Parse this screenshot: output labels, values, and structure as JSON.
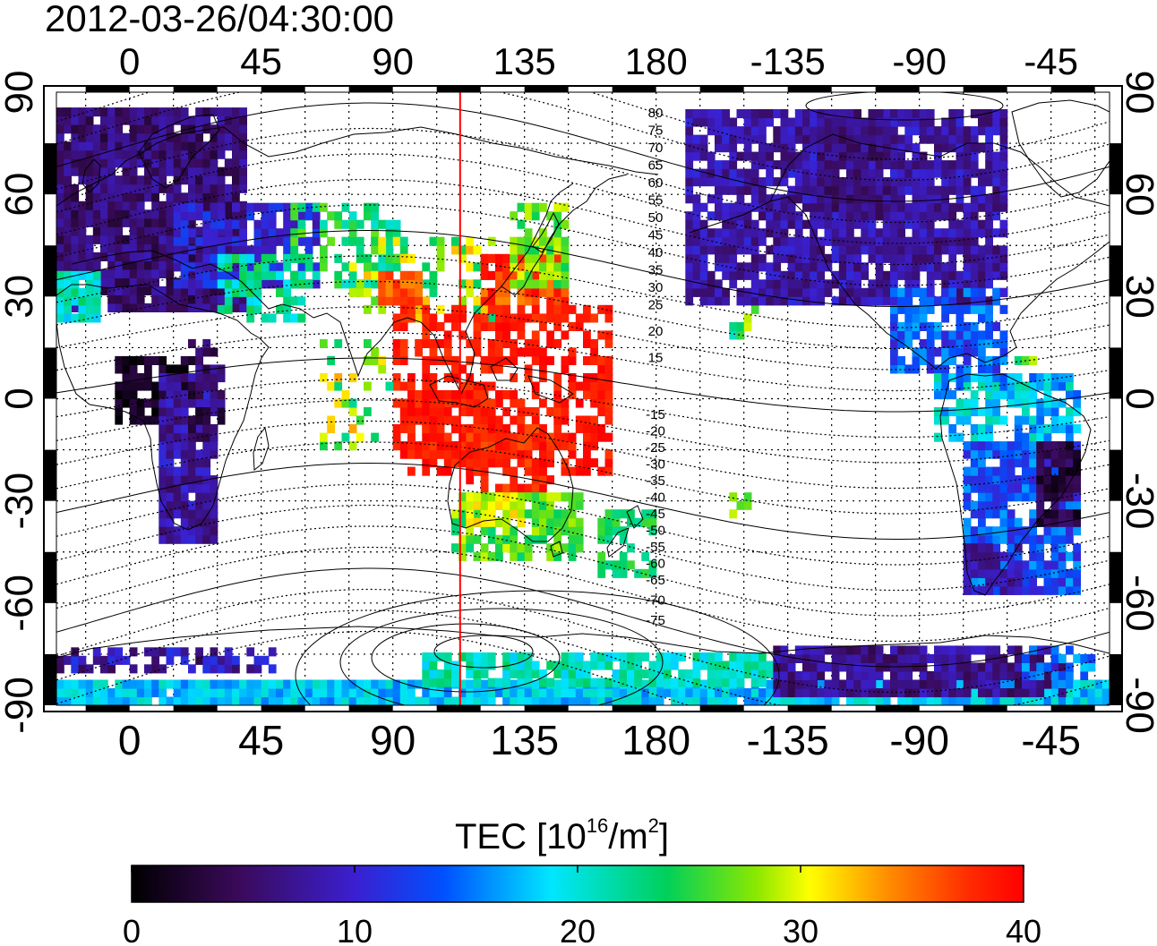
{
  "timestamp": "2012-03-26/04:30:00",
  "x_ticks": [
    "0",
    "45",
    "90",
    "135",
    "180",
    "-135",
    "-90",
    "-45"
  ],
  "y_ticks": [
    "90",
    "60",
    "30",
    "0",
    "-30",
    "-60",
    "-90"
  ],
  "contour_labels_north": [
    "80",
    "75",
    "70",
    "65",
    "60",
    "55",
    "50",
    "45",
    "40",
    "35",
    "30",
    "25",
    "20",
    "15"
  ],
  "contour_labels_south": [
    "-15",
    "-20",
    "-25",
    "-30",
    "-35",
    "-40",
    "-45",
    "-50",
    "-55",
    "-60",
    "-65",
    "-70",
    "-75"
  ],
  "colorbar": {
    "title_prefix": "TEC  [10",
    "title_sup1": "16",
    "title_mid": "/m",
    "title_sup2": "2",
    "title_suffix": "]",
    "ticks": [
      "0",
      "10",
      "20",
      "30",
      "40"
    ],
    "min": 0,
    "max": 40
  },
  "colors": {
    "marker_line": "#ff0000",
    "frame": "#000000",
    "grid": "#000000"
  },
  "marker_longitude": 113
}
